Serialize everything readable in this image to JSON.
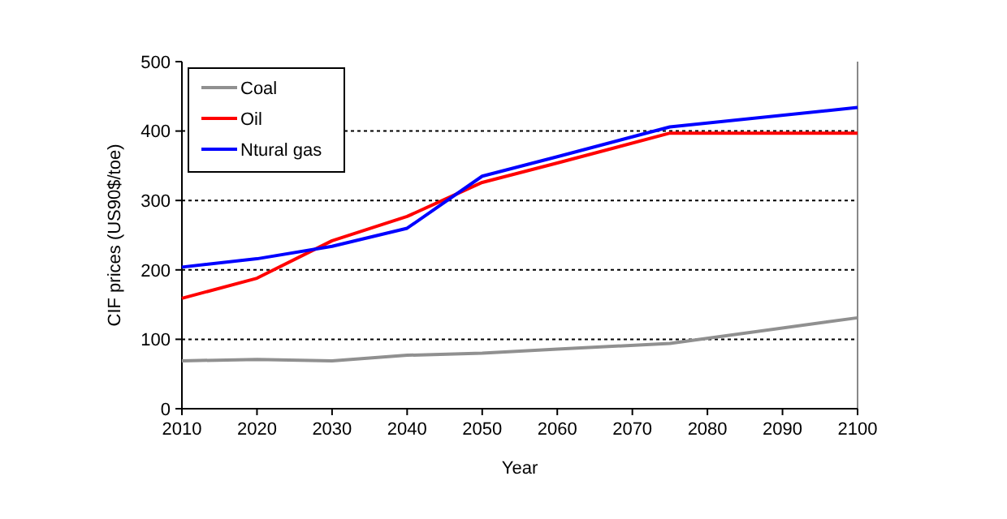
{
  "chart_data": {
    "type": "line",
    "xlabel": "Year",
    "ylabel": "CIF prices (US90$/toe)",
    "x": [
      2010,
      2020,
      2030,
      2040,
      2050,
      2060,
      2075,
      2100
    ],
    "series": [
      {
        "name": "Coal",
        "color": "#909090",
        "values": [
          69,
          71,
          69,
          77,
          80,
          86,
          94,
          131
        ]
      },
      {
        "name": "Oil",
        "color": "#ff0000",
        "values": [
          159,
          188,
          242,
          277,
          326,
          354,
          397,
          397
        ]
      },
      {
        "name": "Ntural gas",
        "color": "#0000ff",
        "values": [
          204,
          216,
          234,
          260,
          335,
          363,
          406,
          434
        ]
      }
    ],
    "xlim": [
      2010,
      2100
    ],
    "xticks": [
      2010,
      2020,
      2030,
      2040,
      2050,
      2060,
      2070,
      2080,
      2090,
      2100
    ],
    "ylim": [
      0,
      500
    ],
    "yticks": [
      0,
      100,
      200,
      300,
      400,
      500
    ],
    "grid": "y",
    "legend": "top left"
  }
}
